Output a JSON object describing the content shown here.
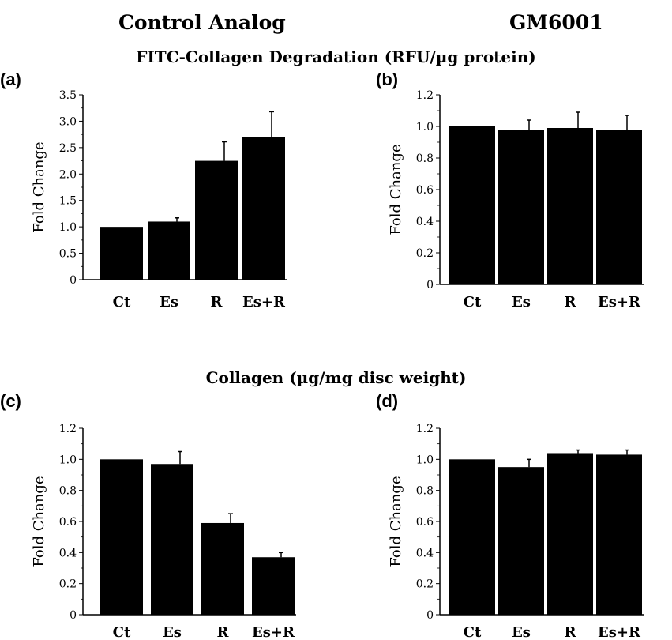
{
  "headings": {
    "left_column": "Control Analog",
    "right_column": "GM6001",
    "row1_subtitle": "FITC-Collagen Degradation (RFU/µg protein)",
    "row2_subtitle": "Collagen (µg/mg disc weight)"
  },
  "colors": {
    "bar": "#000000",
    "axis": "#000000",
    "background": "#ffffff"
  },
  "chart_data": [
    {
      "panel": "(a)",
      "type": "bar",
      "categories": [
        "Ct",
        "Es",
        "R",
        "Es+R"
      ],
      "values": [
        1.0,
        1.1,
        2.25,
        2.7
      ],
      "errors": [
        0.0,
        0.07,
        0.36,
        0.48
      ],
      "ylabel": "Fold Change",
      "ylim": [
        0,
        3.5
      ],
      "yticks": [
        "0",
        "0.5",
        "1.0",
        "1.5",
        "2.0",
        "2.5",
        "3.0",
        "3.5"
      ],
      "ytick_values": [
        0,
        0.5,
        1.0,
        1.5,
        2.0,
        2.5,
        3.0,
        3.5
      ],
      "grid": false
    },
    {
      "panel": "(b)",
      "type": "bar",
      "categories": [
        "Ct",
        "Es",
        "R",
        "Es+R"
      ],
      "values": [
        1.0,
        0.98,
        0.99,
        0.98
      ],
      "errors": [
        0.0,
        0.06,
        0.1,
        0.09
      ],
      "ylabel": "Fold Change",
      "ylim": [
        0,
        1.2
      ],
      "yticks": [
        "0",
        "0.2",
        "0.4",
        "0.6",
        "0.8",
        "1.0",
        "1.2"
      ],
      "ytick_values": [
        0,
        0.2,
        0.4,
        0.6,
        0.8,
        1.0,
        1.2
      ],
      "grid": false
    },
    {
      "panel": "(c)",
      "type": "bar",
      "categories": [
        "Ct",
        "Es",
        "R",
        "Es+R"
      ],
      "values": [
        1.0,
        0.97,
        0.59,
        0.37
      ],
      "errors": [
        0.0,
        0.08,
        0.06,
        0.03
      ],
      "ylabel": "Fold Change",
      "ylim": [
        0,
        1.2
      ],
      "yticks": [
        "0",
        "0.2",
        "0.4",
        "0.6",
        "0.8",
        "1.0",
        "1.2"
      ],
      "ytick_values": [
        0,
        0.2,
        0.4,
        0.6,
        0.8,
        1.0,
        1.2
      ],
      "grid": false
    },
    {
      "panel": "(d)",
      "type": "bar",
      "categories": [
        "Ct",
        "Es",
        "R",
        "Es+R"
      ],
      "values": [
        1.0,
        0.95,
        1.04,
        1.03
      ],
      "errors": [
        0.0,
        0.05,
        0.02,
        0.03
      ],
      "ylabel": "Fold Change",
      "ylim": [
        0,
        1.2
      ],
      "yticks": [
        "0",
        "0.2",
        "0.4",
        "0.6",
        "0.8",
        "1.0",
        "1.2"
      ],
      "ytick_values": [
        0,
        0.2,
        0.4,
        0.6,
        0.8,
        1.0,
        1.2
      ],
      "grid": false
    }
  ]
}
